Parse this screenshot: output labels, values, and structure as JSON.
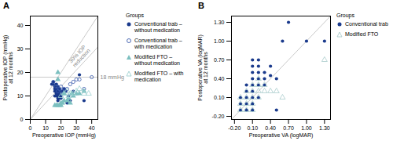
{
  "chart_data": [
    {
      "type": "scatter",
      "title": "A",
      "xlabel": "Preoperative IOP (mmHg)",
      "ylabel": "Postoperative IOP (mmHg)\nat 12 months",
      "xlim": [
        0,
        44
      ],
      "ylim": [
        0,
        44
      ],
      "xticks": [
        0,
        10,
        20,
        30,
        40
      ],
      "yticks": [
        0,
        10,
        20,
        30,
        40
      ],
      "lines": [
        {
          "x": [
            0,
            44
          ],
          "y": [
            0,
            44
          ],
          "color": "#bbbbbb"
        },
        {
          "x": [
            0,
            44
          ],
          "y": [
            0,
            30.8
          ],
          "color": "#bbbbbb"
        }
      ],
      "hline": {
        "y": 18,
        "label": "18 mmHg",
        "color": "#bbbbbb"
      },
      "annotations": [
        {
          "text": "30% IOP\nreduction",
          "x": 32,
          "y": 27
        }
      ],
      "legend": "right",
      "legend_title": "Groups",
      "series": [
        {
          "name": "Conventional trab –\nwithout medication",
          "color": "#1a3a8c",
          "marker": "circle",
          "values": [
            [
              14,
              15
            ],
            [
              15,
              15
            ],
            [
              15,
              16
            ],
            [
              16,
              10
            ],
            [
              16,
              12
            ],
            [
              16,
              13
            ],
            [
              16,
              14
            ],
            [
              17,
              10
            ],
            [
              17,
              11
            ],
            [
              17,
              12
            ],
            [
              17,
              13
            ],
            [
              17,
              15
            ],
            [
              18,
              8
            ],
            [
              18,
              9
            ],
            [
              18,
              10
            ],
            [
              18,
              11
            ],
            [
              18,
              12
            ],
            [
              18,
              13
            ],
            [
              18,
              14
            ],
            [
              19,
              9
            ],
            [
              19,
              10
            ],
            [
              19,
              11
            ],
            [
              19,
              12
            ],
            [
              19,
              13
            ],
            [
              20,
              9
            ],
            [
              20,
              10
            ],
            [
              20,
              12
            ],
            [
              21,
              11
            ],
            [
              21,
              12
            ],
            [
              22,
              11
            ],
            [
              22,
              13
            ],
            [
              23,
              12
            ],
            [
              24,
              7
            ],
            [
              25,
              10
            ],
            [
              26,
              8
            ],
            [
              28,
              12
            ],
            [
              30,
              11
            ],
            [
              32,
              19
            ],
            [
              35,
              8
            ]
          ]
        },
        {
          "name": "Conventional trab –\nwith medication",
          "color": "#3a5aac",
          "marker": "circle-open",
          "values": [
            [
              15,
              16
            ],
            [
              17,
              14
            ],
            [
              18,
              12
            ],
            [
              19,
              13
            ],
            [
              20,
              14
            ],
            [
              21,
              12
            ],
            [
              22,
              13
            ],
            [
              23,
              12
            ],
            [
              24,
              13
            ],
            [
              26,
              15
            ],
            [
              28,
              16
            ],
            [
              30,
              17
            ],
            [
              32,
              17
            ],
            [
              35,
              13
            ],
            [
              40,
              18
            ]
          ]
        },
        {
          "name": "Modified FTO –\nwithout medication",
          "color": "#7bbfbf",
          "marker": "triangle",
          "values": [
            [
              16,
              6
            ],
            [
              17,
              6
            ],
            [
              18,
              6
            ],
            [
              18,
              17
            ],
            [
              19,
              6
            ],
            [
              20,
              6
            ],
            [
              20,
              7
            ],
            [
              21,
              7
            ],
            [
              22,
              8
            ],
            [
              22,
              11
            ],
            [
              24,
              8
            ],
            [
              25,
              9
            ],
            [
              26,
              7
            ],
            [
              27,
              11
            ],
            [
              28,
              10
            ],
            [
              30,
              11
            ],
            [
              32,
              11
            ],
            [
              35,
              12
            ],
            [
              18,
              20
            ]
          ]
        },
        {
          "name": "Modified FTO – with\nmedication",
          "color": "#9dd0d0",
          "marker": "triangle-open",
          "values": [
            [
              20,
              10
            ],
            [
              22,
              11
            ],
            [
              24,
              12
            ],
            [
              25,
              10
            ],
            [
              26,
              11
            ],
            [
              28,
              11
            ],
            [
              30,
              12
            ],
            [
              32,
              13
            ],
            [
              35,
              11
            ],
            [
              38,
              11
            ]
          ]
        }
      ]
    },
    {
      "type": "scatter",
      "title": "B",
      "xlabel": "Preoperative VA (logMAR)",
      "ylabel": "Postoperative VA (logMAR)\nat 12 months",
      "xlim": [
        -0.25,
        1.4
      ],
      "ylim": [
        -0.25,
        1.4
      ],
      "xticks": [
        {
          "value": -0.2,
          "label": "-0.20"
        },
        {
          "value": 0.1,
          "label": "0.10"
        },
        {
          "value": 0.4,
          "label": "0.40"
        },
        {
          "value": 0.7,
          "label": "0.70"
        },
        {
          "value": 1.0,
          "label": "1.00"
        },
        {
          "value": 1.3,
          "label": "1.30"
        }
      ],
      "yticks": [
        {
          "value": -0.2,
          "label": "-0.20"
        },
        {
          "value": 0.1,
          "label": "0.10"
        },
        {
          "value": 0.4,
          "label": "0.40"
        },
        {
          "value": 0.7,
          "label": "0.70"
        },
        {
          "value": 1.0,
          "label": "1.00"
        },
        {
          "value": 1.3,
          "label": "1.30"
        }
      ],
      "lines": [
        {
          "x": [
            -0.25,
            1.4
          ],
          "y": [
            -0.25,
            1.4
          ],
          "color": "#bbbbbb"
        }
      ],
      "legend": "right",
      "legend_title": "Groups",
      "series": [
        {
          "name": "Conventional trab",
          "color": "#1a3a8c",
          "marker": "circle",
          "values": [
            [
              -0.1,
              -0.1
            ],
            [
              -0.1,
              0.0
            ],
            [
              -0.1,
              0.1
            ],
            [
              0.0,
              -0.1
            ],
            [
              0.0,
              0.0
            ],
            [
              0.0,
              0.1
            ],
            [
              0.0,
              0.2
            ],
            [
              0.0,
              0.3
            ],
            [
              0.1,
              -0.1
            ],
            [
              0.1,
              0.0
            ],
            [
              0.1,
              0.1
            ],
            [
              0.1,
              0.2
            ],
            [
              0.1,
              0.3
            ],
            [
              0.1,
              0.4
            ],
            [
              0.1,
              0.5
            ],
            [
              0.1,
              0.6
            ],
            [
              0.1,
              0.7
            ],
            [
              0.2,
              0.3
            ],
            [
              0.2,
              0.4
            ],
            [
              0.2,
              0.5
            ],
            [
              0.2,
              0.6
            ],
            [
              0.2,
              0.7
            ],
            [
              0.3,
              0.4
            ],
            [
              0.3,
              0.5
            ],
            [
              0.4,
              0.45
            ],
            [
              0.4,
              0.6
            ],
            [
              0.5,
              0.4
            ],
            [
              0.6,
              1.0
            ],
            [
              0.7,
              1.3
            ],
            [
              1.0,
              1.0
            ],
            [
              1.3,
              1.0
            ],
            [
              0.1,
              0.0
            ],
            [
              0.1,
              -0.1
            ],
            [
              0.0,
              -0.1
            ],
            [
              0.2,
              0.1
            ],
            [
              0.3,
              0.3
            ],
            [
              0.5,
              -0.1
            ]
          ]
        },
        {
          "name": "Modified FTO",
          "color": "#aacccc",
          "marker": "triangle-open",
          "values": [
            [
              -0.1,
              -0.1
            ],
            [
              -0.1,
              0.0
            ],
            [
              -0.1,
              0.1
            ],
            [
              0.0,
              -0.1
            ],
            [
              0.0,
              0.0
            ],
            [
              0.0,
              0.1
            ],
            [
              0.0,
              0.2
            ],
            [
              0.1,
              -0.1
            ],
            [
              0.1,
              0.0
            ],
            [
              0.1,
              0.1
            ],
            [
              0.1,
              0.2
            ],
            [
              0.1,
              0.3
            ],
            [
              0.2,
              0.1
            ],
            [
              0.2,
              0.2
            ],
            [
              0.2,
              0.3
            ],
            [
              0.2,
              0.4
            ],
            [
              0.3,
              0.2
            ],
            [
              0.3,
              0.3
            ],
            [
              0.4,
              0.2
            ],
            [
              0.5,
              0.2
            ],
            [
              0.6,
              0.1
            ],
            [
              1.3,
              0.7
            ]
          ]
        }
      ]
    }
  ]
}
